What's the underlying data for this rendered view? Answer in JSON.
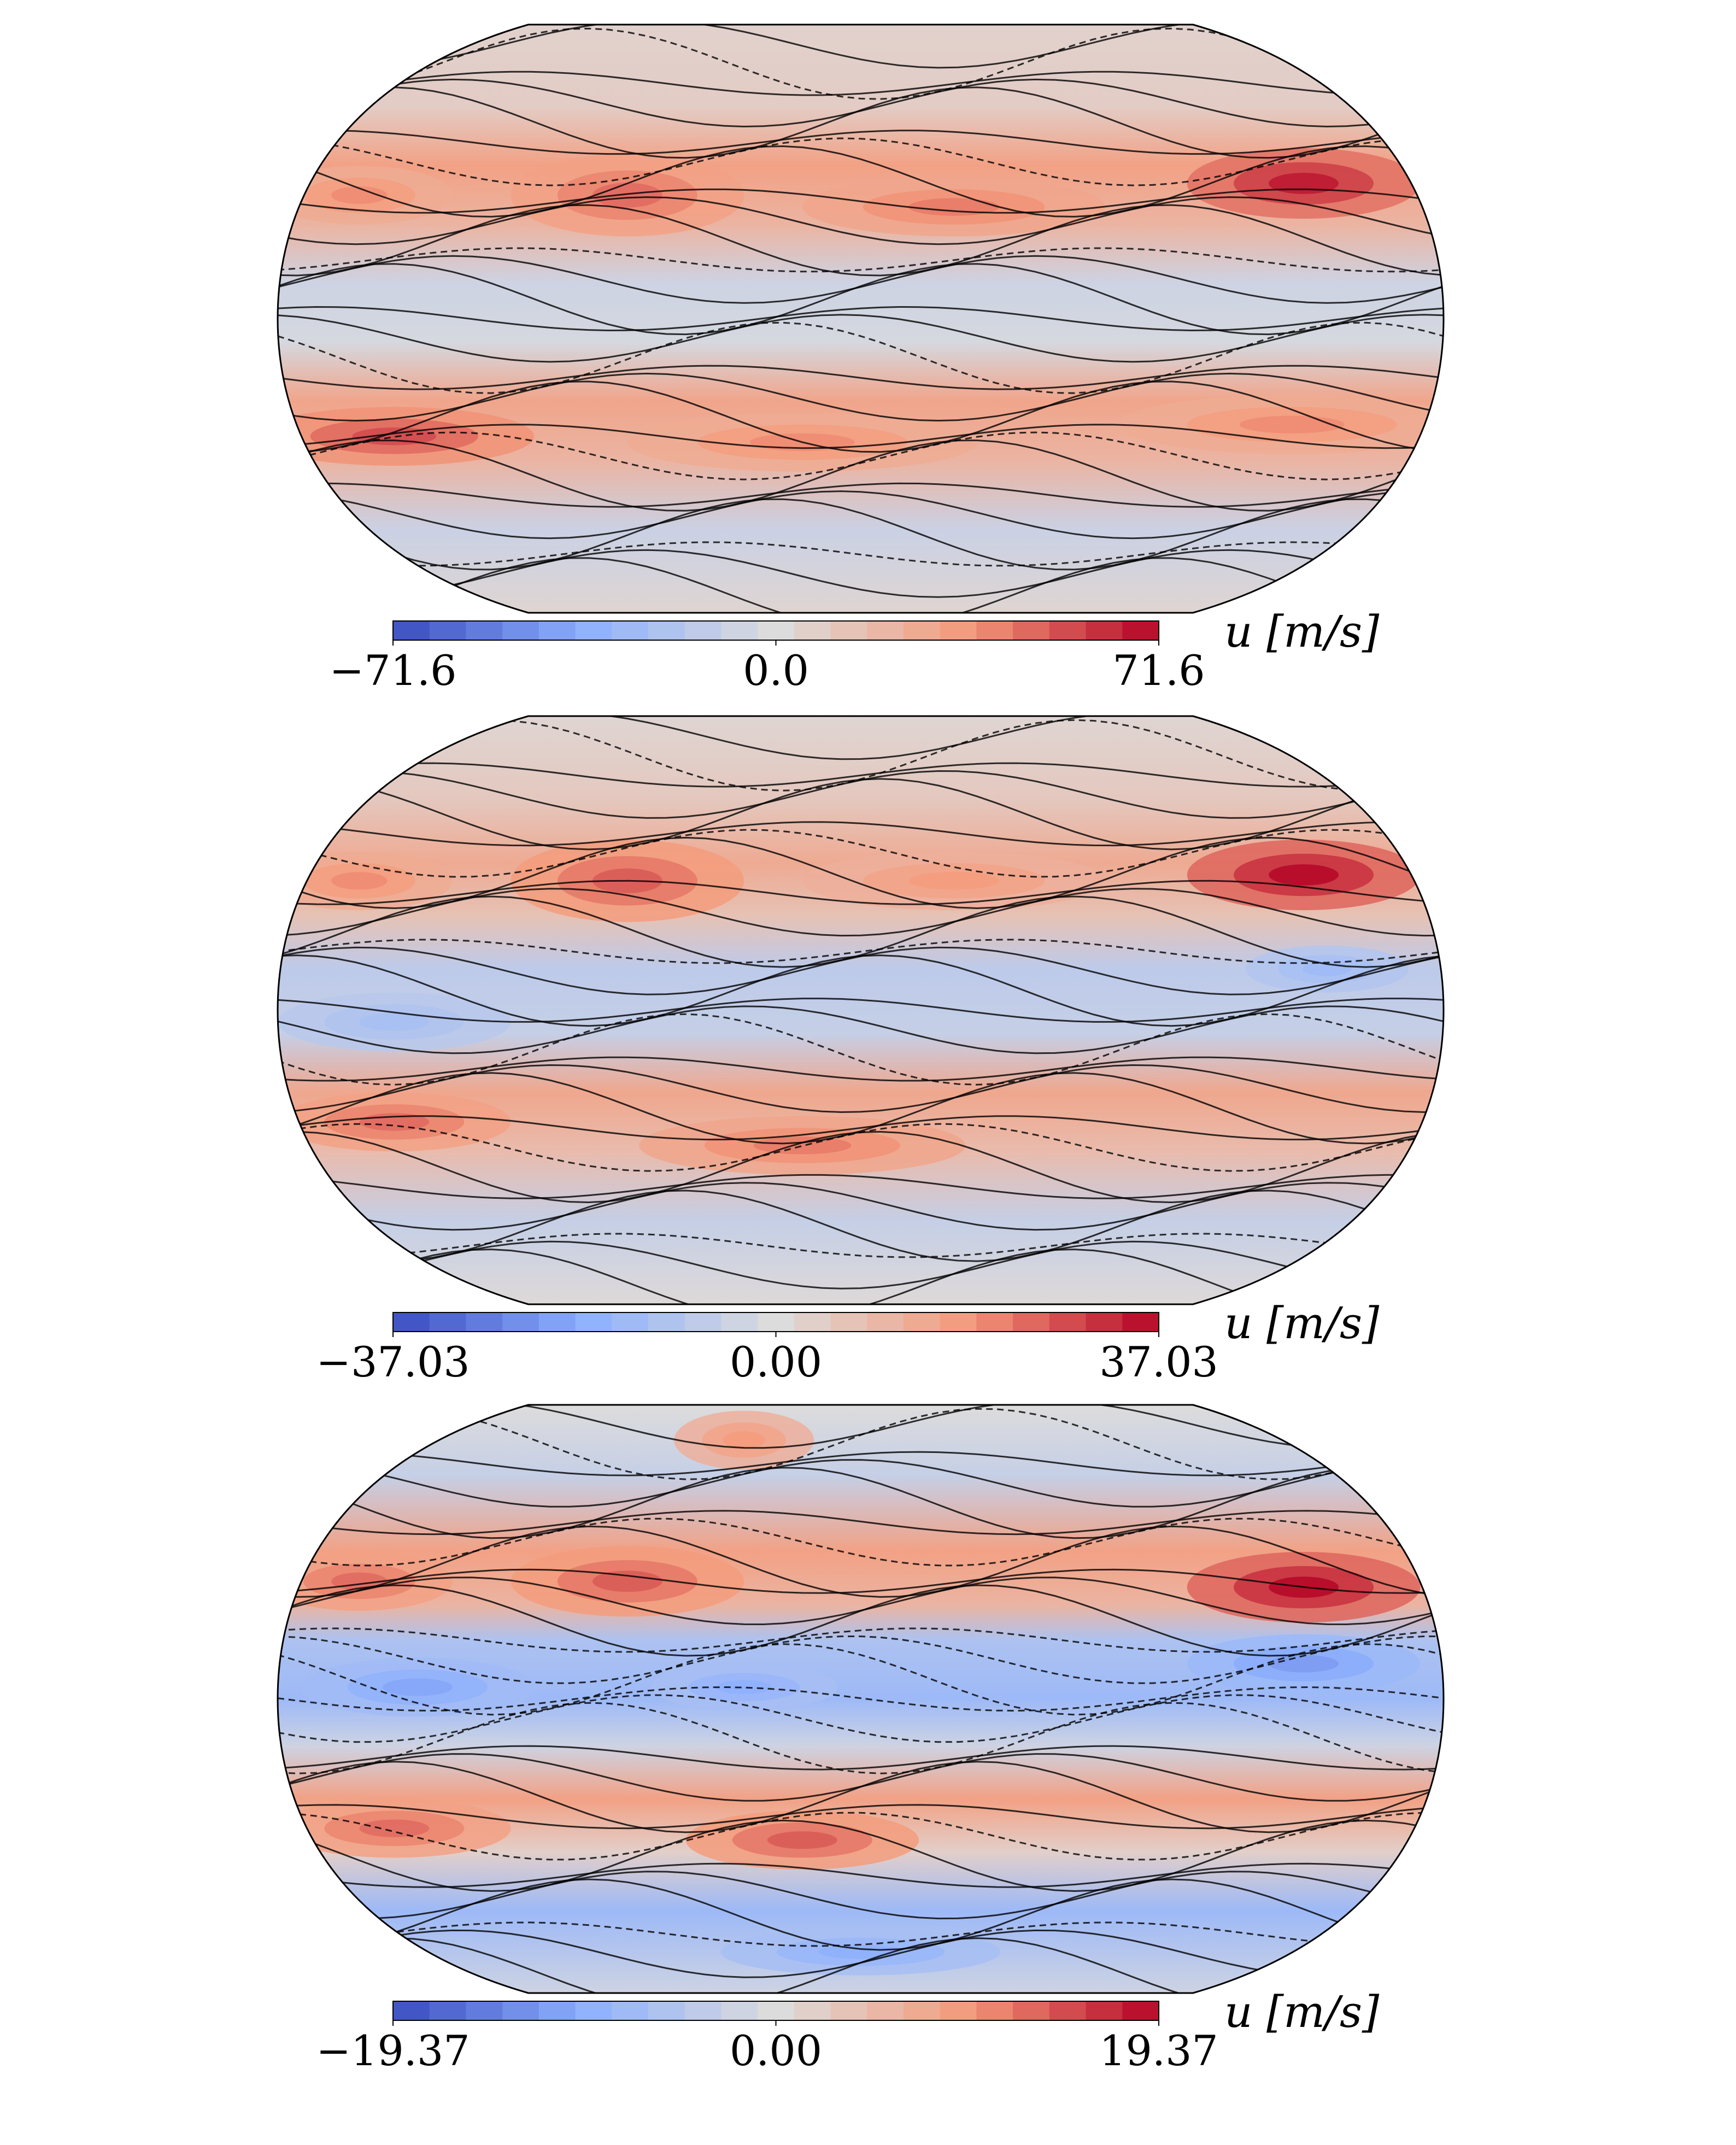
{
  "chart_data": [
    {
      "type": "contourf",
      "colormap": "coolwarm",
      "clim": [
        {
          "value": -71.6,
          "label": "−71.6"
        },
        71.6
      ],
      "cticks": [
        {
          "value": -71.6,
          "label": "−71.6"
        },
        {
          "value": 0,
          "label": "0.0"
        },
        71.6
      ],
      "colorbar_label": "u [m/s]"
    },
    {
      "type": "contourf",
      "colormap": "coolwarm",
      "clim": [
        {
          "value": -37.03,
          "label": "−37.03"
        },
        37.03
      ],
      "cticks": [
        {
          "value": -37.03,
          "label": "−37.03"
        },
        {
          "value": 0,
          "label": "0.00"
        },
        37.03
      ],
      "colorbar_label": "u [m/s]"
    },
    {
      "type": "contourf",
      "colormap": "coolwarm",
      "clim": [
        {
          "value": -19.37,
          "label": "−19.37"
        },
        19.37
      ],
      "cticks": [
        {
          "value": -19.37,
          "label": "−19.37"
        },
        {
          "value": 0,
          "label": "0.00"
        },
        19.37
      ],
      "colorbar_label": "u [m/s]"
    }
  ]
}
